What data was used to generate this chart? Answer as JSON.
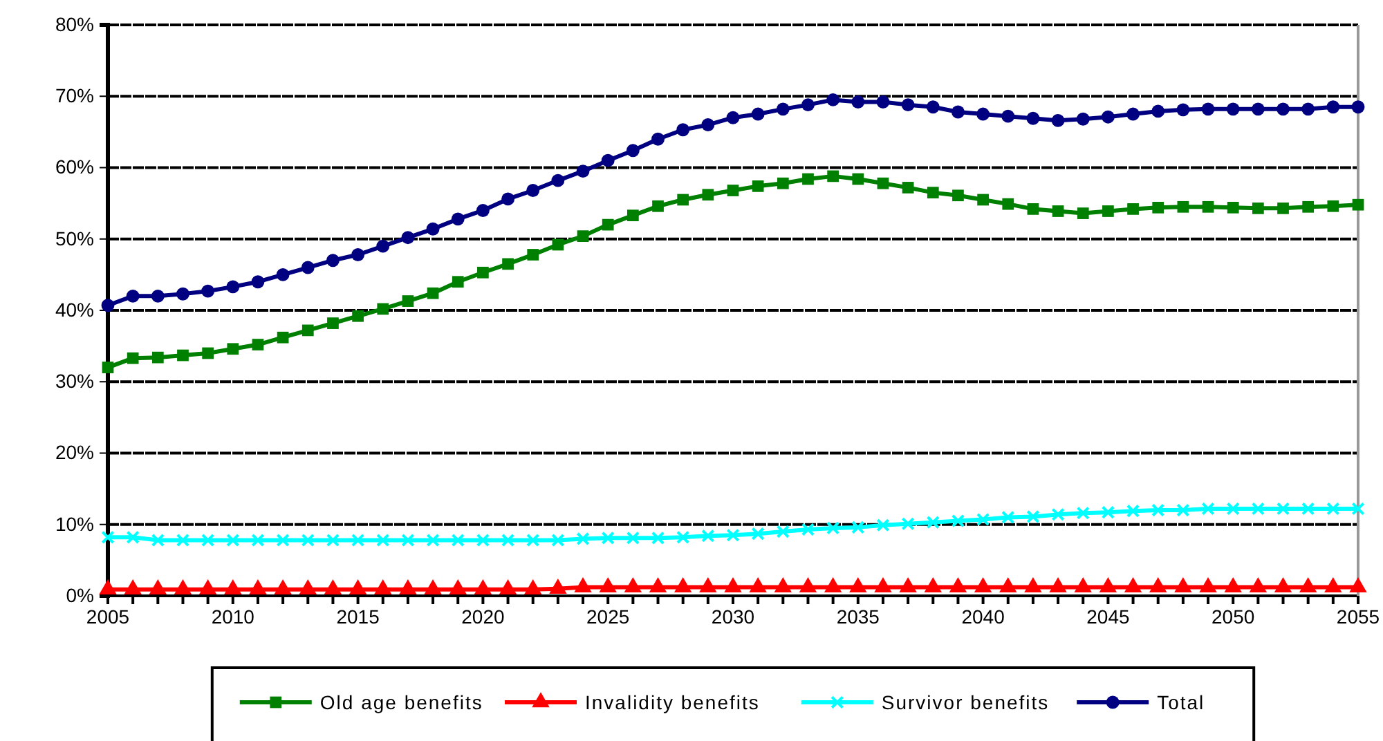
{
  "chart_data": {
    "type": "line",
    "x": [
      2005,
      2006,
      2007,
      2008,
      2009,
      2010,
      2011,
      2012,
      2013,
      2014,
      2015,
      2016,
      2017,
      2018,
      2019,
      2020,
      2021,
      2022,
      2023,
      2024,
      2025,
      2026,
      2027,
      2028,
      2029,
      2030,
      2031,
      2032,
      2033,
      2034,
      2035,
      2036,
      2037,
      2038,
      2039,
      2040,
      2041,
      2042,
      2043,
      2044,
      2045,
      2046,
      2047,
      2048,
      2049,
      2050,
      2051,
      2052,
      2053,
      2054,
      2055
    ],
    "xlim": [
      2005,
      2055
    ],
    "xticks": [
      2005,
      {
        "value": 2006,
        "label": null
      },
      {
        "value": 2007,
        "label": null
      },
      {
        "value": 2008,
        "label": null
      },
      {
        "value": 2009,
        "label": null
      },
      2010,
      {
        "value": 2011,
        "label": null
      },
      {
        "value": 2012,
        "label": null
      },
      {
        "value": 2013,
        "label": null
      },
      {
        "value": 2014,
        "label": null
      },
      2015,
      {
        "value": 2016,
        "label": null
      },
      {
        "value": 2017,
        "label": null
      },
      {
        "value": 2018,
        "label": null
      },
      {
        "value": 2019,
        "label": null
      },
      2020,
      {
        "value": 2021,
        "label": null
      },
      {
        "value": 2022,
        "label": null
      },
      {
        "value": 2023,
        "label": null
      },
      {
        "value": 2024,
        "label": null
      },
      2025,
      {
        "value": 2026,
        "label": null
      },
      {
        "value": 2027,
        "label": null
      },
      {
        "value": 2028,
        "label": null
      },
      {
        "value": 2029,
        "label": null
      },
      2030,
      {
        "value": 2031,
        "label": null
      },
      {
        "value": 2032,
        "label": null
      },
      {
        "value": 2033,
        "label": null
      },
      {
        "value": 2034,
        "label": null
      },
      2035,
      {
        "value": 2036,
        "label": null
      },
      {
        "value": 2037,
        "label": null
      },
      {
        "value": 2038,
        "label": null
      },
      {
        "value": 2039,
        "label": null
      },
      2040,
      {
        "value": 2041,
        "label": null
      },
      {
        "value": 2042,
        "label": null
      },
      {
        "value": 2043,
        "label": null
      },
      {
        "value": 2044,
        "label": null
      },
      2045,
      {
        "value": 2046,
        "label": null
      },
      {
        "value": 2047,
        "label": null
      },
      {
        "value": 2048,
        "label": null
      },
      {
        "value": 2049,
        "label": null
      },
      2050,
      {
        "value": 2051,
        "label": null
      },
      {
        "value": 2052,
        "label": null
      },
      {
        "value": 2053,
        "label": null
      },
      {
        "value": 2054,
        "label": null
      },
      2055
    ],
    "ylim": [
      0,
      80
    ],
    "yticks": [
      {
        "value": 0,
        "label": "0%"
      },
      {
        "value": 10,
        "label": "10%"
      },
      {
        "value": 20,
        "label": "20%"
      },
      {
        "value": 30,
        "label": "30%"
      },
      {
        "value": 40,
        "label": "40%"
      },
      {
        "value": 50,
        "label": "50%"
      },
      {
        "value": 60,
        "label": "60%"
      },
      {
        "value": 70,
        "label": "70%"
      },
      {
        "value": 80,
        "label": "80%"
      }
    ],
    "grid": "y",
    "legend": "bottom",
    "series": [
      {
        "name": "Old age benefits",
        "color": "#008000",
        "marker": "square",
        "values": [
          32,
          33.3,
          33.4,
          33.7,
          34,
          34.6,
          35.2,
          36.2,
          37.2,
          38.2,
          39.2,
          40.2,
          41.3,
          42.4,
          44,
          45.3,
          46.5,
          47.8,
          49.2,
          50.4,
          52,
          53.3,
          54.6,
          55.5,
          56.2,
          56.8,
          57.4,
          57.8,
          58.4,
          58.8,
          58.4,
          57.8,
          57.2,
          56.5,
          56.1,
          55.5,
          54.9,
          54.2,
          53.9,
          53.6,
          53.9,
          54.2,
          54.4,
          54.5,
          54.5,
          54.4,
          54.3,
          54.3,
          54.5,
          54.6,
          54.8
        ]
      },
      {
        "name": "Invalidity benefits",
        "color": "#ff0000",
        "marker": "triangle",
        "values": [
          0.9,
          0.9,
          0.9,
          0.9,
          0.9,
          0.9,
          0.9,
          0.9,
          0.9,
          0.9,
          0.9,
          0.9,
          0.9,
          0.9,
          0.9,
          0.9,
          0.9,
          0.9,
          1,
          1.2,
          1.2,
          1.2,
          1.2,
          1.2,
          1.2,
          1.2,
          1.2,
          1.2,
          1.2,
          1.2,
          1.2,
          1.2,
          1.2,
          1.2,
          1.2,
          1.2,
          1.2,
          1.2,
          1.2,
          1.2,
          1.2,
          1.2,
          1.2,
          1.2,
          1.2,
          1.2,
          1.2,
          1.2,
          1.2,
          1.2,
          1.2
        ]
      },
      {
        "name": "Survivor benefits",
        "color": "#00ffff",
        "marker": "cross",
        "values": [
          8.2,
          8.2,
          7.8,
          7.8,
          7.8,
          7.8,
          7.8,
          7.8,
          7.8,
          7.8,
          7.8,
          7.8,
          7.8,
          7.8,
          7.8,
          7.8,
          7.8,
          7.8,
          7.8,
          8,
          8.1,
          8.1,
          8.1,
          8.2,
          8.4,
          8.5,
          8.7,
          9,
          9.3,
          9.5,
          9.6,
          9.9,
          10.1,
          10.3,
          10.5,
          10.7,
          11,
          11.1,
          11.4,
          11.6,
          11.7,
          11.9,
          12,
          12,
          12.2,
          12.2,
          12.2,
          12.2,
          12.2,
          12.2,
          12.2
        ]
      },
      {
        "name": "Total",
        "color": "#000080",
        "marker": "circle",
        "values": [
          40.7,
          42,
          42,
          42.3,
          42.7,
          43.3,
          44,
          45,
          46,
          47,
          47.8,
          49,
          50.2,
          51.4,
          52.8,
          54,
          55.6,
          56.8,
          58.2,
          59.5,
          61,
          62.4,
          64,
          65.3,
          66,
          67,
          67.5,
          68.2,
          68.8,
          69.5,
          69.2,
          69.2,
          68.8,
          68.5,
          67.8,
          67.5,
          67.2,
          66.9,
          66.6,
          66.8,
          67.1,
          67.5,
          67.9,
          68.1,
          68.2,
          68.2,
          68.2,
          68.2,
          68.2,
          68.5,
          68.5
        ]
      }
    ]
  }
}
